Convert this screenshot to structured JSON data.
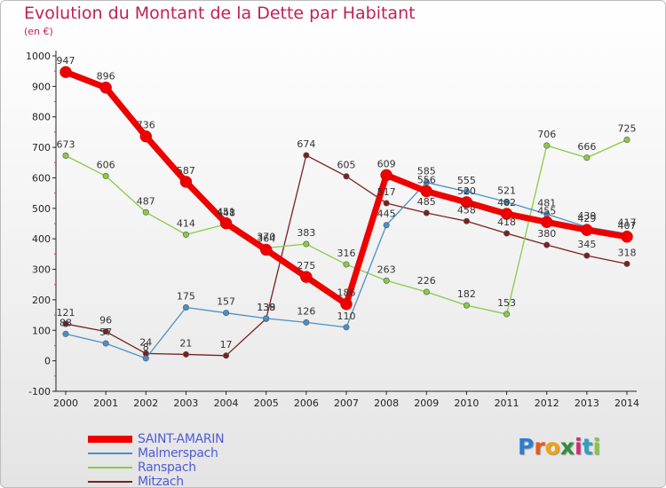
{
  "header": {
    "title": "Evolution du Montant de la Dette par Habitant",
    "subtitle": "(en €)"
  },
  "logo_text": "Proxiti",
  "chart_data": {
    "type": "line",
    "title": "Evolution du Montant de la Dette par Habitant",
    "subtitle": "(en €)",
    "x": [
      2000,
      2001,
      2002,
      2003,
      2004,
      2005,
      2006,
      2007,
      2008,
      2009,
      2010,
      2011,
      2012,
      2013,
      2014
    ],
    "ylim": [
      -100,
      1000
    ],
    "yticks": [
      -100,
      0,
      100,
      200,
      300,
      400,
      500,
      600,
      700,
      800,
      900,
      1000
    ],
    "grid": false,
    "legend_position": "bottom-left",
    "series": [
      {
        "name": "SAINT-AMARIN",
        "color": "#ee0000",
        "values": [
          947,
          896,
          736,
          587,
          451,
          364,
          275,
          186,
          609,
          556,
          520,
          482,
          455,
          429,
          407
        ]
      },
      {
        "name": "Malmerspach",
        "color": "#4a90c8",
        "values": [
          88,
          57,
          8,
          175,
          157,
          139,
          126,
          110,
          445,
          585,
          555,
          521,
          481,
          439,
          417
        ]
      },
      {
        "name": "Ranspach",
        "color": "#88cc44",
        "values": [
          673,
          606,
          487,
          414,
          448,
          370,
          383,
          316,
          263,
          226,
          182,
          153,
          706,
          666,
          725
        ]
      },
      {
        "name": "Mitzach",
        "color": "#7a2020",
        "values": [
          121,
          96,
          24,
          21,
          17,
          138,
          674,
          605,
          517,
          485,
          458,
          418,
          380,
          345,
          318
        ]
      }
    ]
  }
}
